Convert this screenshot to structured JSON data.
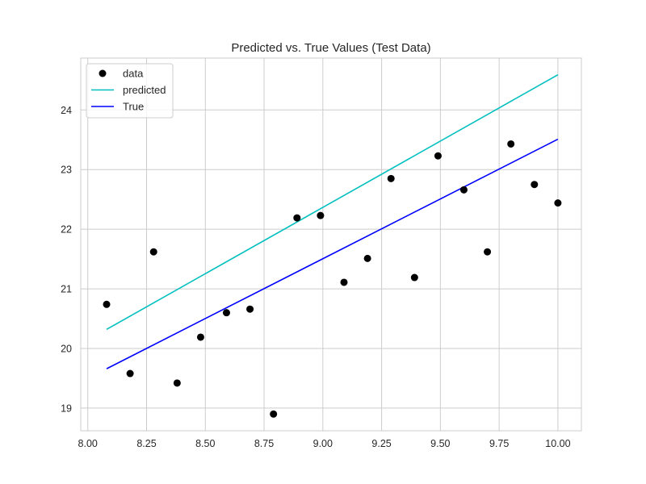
{
  "chart_data": {
    "type": "scatter",
    "title": "Predicted vs. True Values (Test Data)",
    "xlabel": "",
    "ylabel": "",
    "xlim": [
      7.97,
      10.1
    ],
    "ylim": [
      18.62,
      24.87
    ],
    "xticks": [
      8.0,
      8.25,
      8.5,
      8.75,
      9.0,
      9.25,
      9.5,
      9.75,
      10.0
    ],
    "xtick_labels": [
      "8.00",
      "8.25",
      "8.50",
      "8.75",
      "9.00",
      "9.25",
      "9.50",
      "9.75",
      "10.00"
    ],
    "yticks": [
      19,
      20,
      21,
      22,
      23,
      24
    ],
    "ytick_labels": [
      "19",
      "20",
      "21",
      "22",
      "23",
      "24"
    ],
    "grid": true,
    "legend_position": "top-left",
    "series": [
      {
        "name": "data",
        "kind": "points",
        "color": "#000000",
        "x": [
          8.08,
          8.18,
          8.28,
          8.38,
          8.48,
          8.59,
          8.69,
          8.79,
          8.89,
          8.99,
          9.09,
          9.19,
          9.29,
          9.39,
          9.49,
          9.6,
          9.7,
          9.8,
          9.9,
          10.0
        ],
        "y": [
          20.74,
          19.58,
          21.62,
          19.42,
          20.19,
          20.6,
          20.66,
          18.9,
          22.19,
          22.23,
          21.11,
          21.51,
          22.85,
          21.19,
          23.23,
          22.66,
          21.62,
          23.43,
          22.75,
          22.44
        ]
      },
      {
        "name": "predicted",
        "kind": "line",
        "color": "#00bfbf",
        "x": [
          8.08,
          10.0
        ],
        "y": [
          20.32,
          24.59
        ]
      },
      {
        "name": "True",
        "kind": "line",
        "color": "#0000ff",
        "x": [
          8.08,
          10.0
        ],
        "y": [
          19.66,
          23.51
        ]
      }
    ]
  }
}
